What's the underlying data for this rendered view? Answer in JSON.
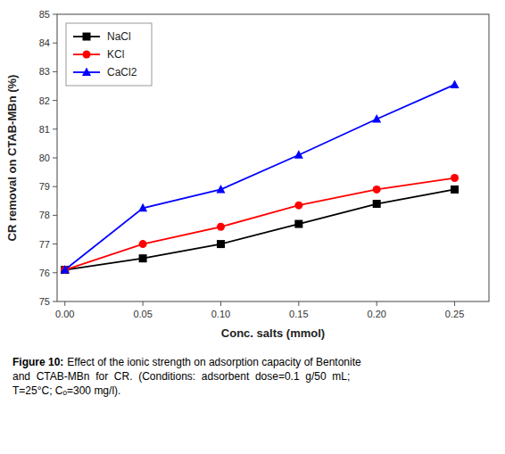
{
  "chart_data": {
    "type": "line",
    "x_label": "Conc. salts (mmol)",
    "y_label": "CR removal on CTAB-MBn (%)",
    "x": [
      0.0,
      0.05,
      0.1,
      0.15,
      0.2,
      0.25
    ],
    "series": [
      {
        "name": "NaCl",
        "color": "#000000",
        "marker": "square",
        "line_style": "solid",
        "values": [
          76.1,
          76.5,
          77.0,
          77.7,
          78.4,
          78.9
        ]
      },
      {
        "name": "KCl",
        "color": "#ff0000",
        "marker": "circle",
        "line_style": "solid",
        "values": [
          76.1,
          77.0,
          77.6,
          78.35,
          78.9,
          79.3
        ]
      },
      {
        "name": "CaCl2",
        "color": "#0000ff",
        "marker": "triangle",
        "line_style": "solid",
        "values": [
          76.1,
          78.25,
          78.9,
          80.1,
          81.35,
          82.55
        ]
      }
    ],
    "xlim": [
      -0.005,
      0.272
    ],
    "ylim": [
      75,
      85
    ],
    "xticks": [
      {
        "value": 0,
        "label": "0.00"
      },
      0.05,
      {
        "value": 0.1,
        "label": "0.10"
      },
      0.15,
      {
        "value": 0.2,
        "label": "0.20"
      },
      0.25
    ],
    "yticks": [
      75,
      76,
      77,
      78,
      79,
      80,
      81,
      82,
      83,
      84,
      85
    ],
    "grid": false,
    "legend": "upper left",
    "caption_label": "Figure 10:",
    "caption": "Effect of the ionic strength on adsorption capacity of Bentonite\nand  CTAB-MBn  for  CR.  (Conditions:  adsorbent  dose=0.1  g/50  mL;\nT=25°C; Cₒ=300 mg/l)."
  }
}
